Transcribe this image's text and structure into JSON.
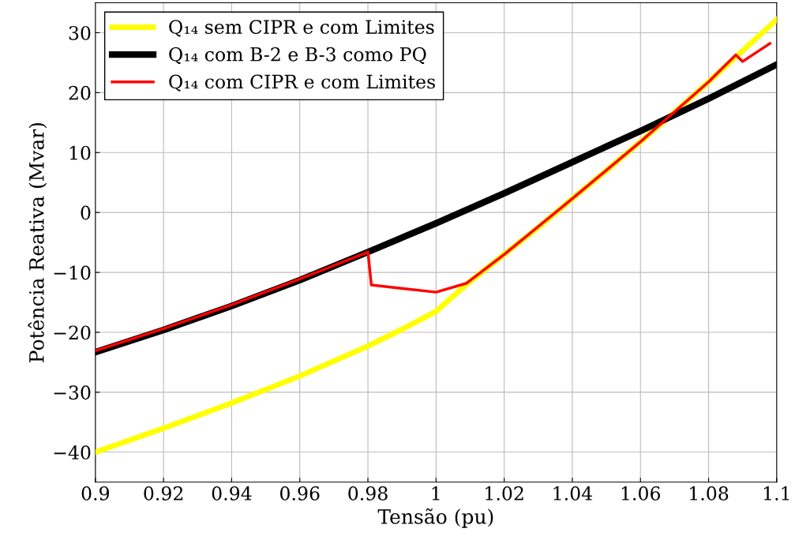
{
  "chart_data": {
    "type": "line",
    "xlabel": "Tensão (pu)",
    "ylabel": "Potência Reativa (Mvar)",
    "xlim": [
      0.9,
      1.1
    ],
    "xticks": [
      0.9,
      0.92,
      0.94,
      0.96,
      0.98,
      1,
      1.02,
      1.04,
      1.06,
      1.08,
      1.1
    ],
    "ylim": [
      -45,
      35
    ],
    "yticks": [
      -40,
      -30,
      -20,
      -10,
      0,
      10,
      20,
      30
    ],
    "grid": true,
    "legend": "top left",
    "marker": "none",
    "line_style": "solid",
    "series": [
      {
        "name": "Q₁₄ sem CIPR e com Limites",
        "color": "#ffff00",
        "x": [
          0.9,
          0.92,
          0.94,
          0.96,
          0.98,
          0.99,
          1.0,
          1.01,
          1.02,
          1.03,
          1.04,
          1.05,
          1.06,
          1.07,
          1.08,
          1.09,
          1.1
        ],
        "values": [
          -40,
          -36,
          -31.8,
          -27.3,
          -22.3,
          -19.5,
          -16.5,
          -11.5,
          -7,
          -2.5,
          2.3,
          7,
          11.8,
          16.7,
          21.8,
          27,
          32.2
        ]
      },
      {
        "name": "Q₁₄ com B-2 e B-3 como PQ",
        "color": "#000000",
        "x": [
          0.9,
          0.92,
          0.94,
          0.96,
          0.98,
          1.0,
          1.02,
          1.04,
          1.06,
          1.08,
          1.1
        ],
        "values": [
          -23.3,
          -19.6,
          -15.6,
          -11.3,
          -6.6,
          -1.8,
          3.2,
          8.4,
          13.6,
          19,
          24.7
        ]
      },
      {
        "name": "Q₁₄ com CIPR e com Limites",
        "color": "#ff0000",
        "x": [
          0.9,
          0.92,
          0.94,
          0.96,
          0.98,
          0.981,
          1.0,
          1.009,
          1.02,
          1.04,
          1.06,
          1.08,
          1.088,
          1.09,
          1.098
        ],
        "values": [
          -23.1,
          -19.4,
          -15.4,
          -11.1,
          -6.6,
          -12.1,
          -13.3,
          -11.8,
          -7,
          2.3,
          11.8,
          21.8,
          26.3,
          25.2,
          28.2
        ]
      }
    ]
  }
}
